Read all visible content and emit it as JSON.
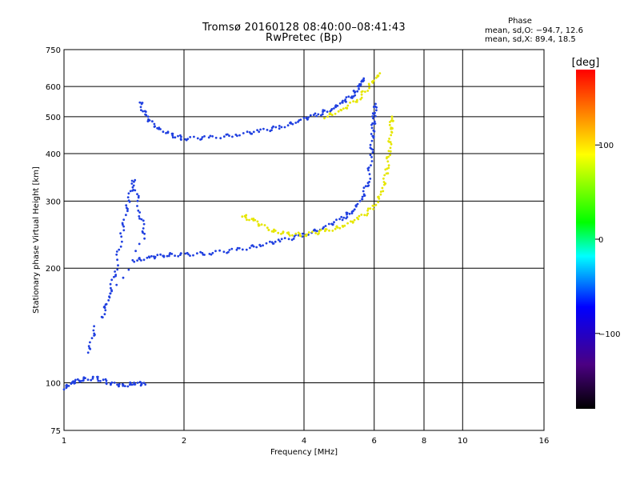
{
  "header": {
    "title_line1": "Tromsø 20160128 08:40:00–08:41:43",
    "title_line2": "RwPretec (Bp)",
    "phase_title": "Phase",
    "phase_o": "mean, sd,O: −94.7, 12.6",
    "phase_x": "mean, sd,X:  89.4, 18.5"
  },
  "chart_data": {
    "type": "scatter",
    "title": "Tromsø 20160128 08:40:00–08:41:43",
    "subtitle": "RwPretec (Bp)",
    "xlabel": "Frequency [MHz]",
    "ylabel": "Stationary phase Virtual Height [km]",
    "x_scale": "log",
    "y_scale": "log",
    "xlim": [
      1,
      16
    ],
    "ylim": [
      75,
      750
    ],
    "x_ticks": [
      1,
      2,
      4,
      6,
      8,
      10,
      16
    ],
    "x_tick_labels": [
      "1",
      "2",
      "4",
      "6",
      "8",
      "10",
      "16"
    ],
    "y_ticks": [
      75,
      100,
      200,
      300,
      400,
      500,
      600,
      750
    ],
    "y_tick_labels": [
      "75",
      "100",
      "200",
      "300",
      "400",
      "500",
      "600",
      "750"
    ],
    "grid": true,
    "colorbar": {
      "label": "[deg]",
      "range": [
        -180,
        180
      ],
      "ticks": [
        100,
        0,
        -100
      ],
      "tick_labels": [
        "100",
        "0",
        "−100"
      ],
      "colors": [
        "#000000",
        "#4b0082",
        "#0000ff",
        "#00ffff",
        "#00ff00",
        "#ffff00",
        "#ff0000"
      ]
    },
    "series": [
      {
        "role": "F-layer O trace (lower)",
        "phase": -100,
        "color": "#2040e0",
        "points": [
          [
            1.5,
            210
          ],
          [
            1.65,
            213
          ],
          [
            1.8,
            217
          ],
          [
            2.0,
            217
          ],
          [
            2.3,
            219
          ],
          [
            2.7,
            223
          ],
          [
            3.1,
            230
          ],
          [
            3.5,
            236
          ],
          [
            4.0,
            245
          ],
          [
            4.5,
            256
          ],
          [
            5.0,
            270
          ],
          [
            5.3,
            284
          ],
          [
            5.6,
            305
          ],
          [
            5.8,
            340
          ],
          [
            5.9,
            400
          ],
          [
            5.95,
            460
          ],
          [
            6.0,
            500
          ],
          [
            6.05,
            540
          ]
        ]
      },
      {
        "role": "F-layer X trace (lower)",
        "phase": 100,
        "color": "#e6e600",
        "points": [
          [
            2.8,
            276
          ],
          [
            3.0,
            265
          ],
          [
            3.3,
            252
          ],
          [
            3.6,
            246
          ],
          [
            4.0,
            245
          ],
          [
            4.5,
            250
          ],
          [
            5.0,
            258
          ],
          [
            5.5,
            270
          ],
          [
            6.0,
            290
          ],
          [
            6.3,
            320
          ],
          [
            6.45,
            360
          ],
          [
            6.55,
            410
          ],
          [
            6.6,
            460
          ],
          [
            6.65,
            500
          ]
        ]
      },
      {
        "role": "Multiple-hop O trace (upper)",
        "phase": -100,
        "color": "#2040e0",
        "points": [
          [
            1.55,
            550
          ],
          [
            1.6,
            500
          ],
          [
            1.7,
            470
          ],
          [
            1.85,
            448
          ],
          [
            2.0,
            438
          ],
          [
            2.3,
            440
          ],
          [
            2.7,
            448
          ],
          [
            3.1,
            458
          ],
          [
            3.5,
            470
          ],
          [
            3.9,
            488
          ],
          [
            4.3,
            505
          ],
          [
            4.7,
            525
          ],
          [
            5.0,
            545
          ],
          [
            5.3,
            570
          ],
          [
            5.5,
            600
          ],
          [
            5.65,
            630
          ]
        ]
      },
      {
        "role": "Multiple-hop X trace (upper)",
        "phase": 100,
        "color": "#e6e600",
        "points": [
          [
            4.5,
            500
          ],
          [
            5.0,
            520
          ],
          [
            5.5,
            560
          ],
          [
            5.9,
            610
          ],
          [
            6.2,
            650
          ]
        ]
      },
      {
        "role": "Sporadic E / spread echoes",
        "phase": -100,
        "color": "#2040e0",
        "points": [
          [
            1.25,
            150
          ],
          [
            1.3,
            170
          ],
          [
            1.35,
            200
          ],
          [
            1.4,
            250
          ],
          [
            1.45,
            300
          ],
          [
            1.5,
            340
          ],
          [
            1.55,
            280
          ],
          [
            1.6,
            240
          ],
          [
            1.2,
            140
          ],
          [
            1.15,
            120
          ]
        ]
      },
      {
        "role": "Low-height echoes",
        "phase": -100,
        "color": "#2040e0",
        "points": [
          [
            1.0,
            97
          ],
          [
            1.05,
            100
          ],
          [
            1.1,
            102
          ],
          [
            1.2,
            103
          ],
          [
            1.3,
            100
          ],
          [
            1.4,
            98
          ],
          [
            1.5,
            100
          ],
          [
            1.6,
            99
          ]
        ]
      }
    ]
  }
}
